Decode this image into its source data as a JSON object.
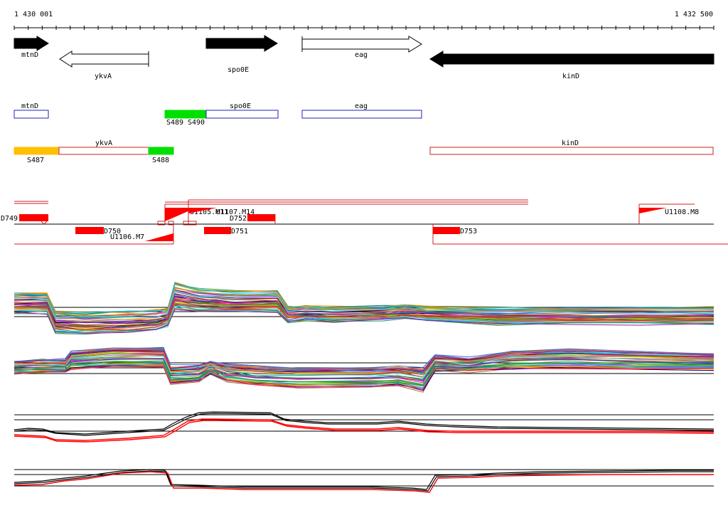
{
  "ruler": {
    "start_label": "1 430 001",
    "end_label": "1 432 500",
    "start": 1430001,
    "end": 1432500
  },
  "genes": [
    {
      "name": "mtnD",
      "start": 1430001,
      "end": 1430120,
      "strand": "+",
      "fill": "black"
    },
    {
      "name": "ykvA",
      "start": 1430160,
      "end": 1430480,
      "strand": "-",
      "fill": "white"
    },
    {
      "name": "spo0E",
      "start": 1430680,
      "end": 1430940,
      "strand": "+",
      "fill": "black"
    },
    {
      "name": "eag",
      "start": 1431020,
      "end": 1431450,
      "strand": "+",
      "fill": "white"
    },
    {
      "name": "kinD",
      "start": 1431480,
      "end": 1432500,
      "strand": "-",
      "fill": "black"
    }
  ],
  "annotation_row_plus": {
    "boxes": [
      {
        "name": "mtnD",
        "start": 1430001,
        "end": 1430120,
        "color": "#2020c0"
      },
      {
        "name": "spo0E",
        "start": 1430680,
        "end": 1430940,
        "color": "#2020c0"
      },
      {
        "name": "eag",
        "start": 1431020,
        "end": 1431450,
        "color": "#2020c0"
      }
    ],
    "segments": [
      {
        "label": "S489",
        "start": 1430535,
        "end": 1430680,
        "color": "#00e000"
      },
      {
        "label": "S490",
        "start": 1430680,
        "end": 1430680,
        "color": "#00e000"
      }
    ]
  },
  "annotation_row_minus": {
    "boxes": [
      {
        "name": "ykvA",
        "start": 1430160,
        "end": 1430480,
        "color": "#d02020"
      },
      {
        "name": "kinD",
        "start": 1431480,
        "end": 1432500,
        "color": "#d02020"
      }
    ],
    "segments": [
      {
        "label": "S487",
        "start": 1430001,
        "end": 1430160,
        "color": "#ffc000"
      },
      {
        "label": "S488",
        "start": 1430480,
        "end": 1430570,
        "color": "#00e000"
      }
    ]
  },
  "features": [
    {
      "label": "D749",
      "kind": "block"
    },
    {
      "label": "D750",
      "kind": "block"
    },
    {
      "label": "U1106.M7",
      "kind": "flag"
    },
    {
      "label": "U1105.M11",
      "kind": "flag"
    },
    {
      "label": "U1107.M14",
      "kind": "flag"
    },
    {
      "label": "D751",
      "kind": "block"
    },
    {
      "label": "D752",
      "kind": "block"
    },
    {
      "label": "D753",
      "kind": "block"
    },
    {
      "label": "U1108.M8",
      "kind": "flag"
    }
  ],
  "colors": {
    "gene_fill": "#000000",
    "annotation_plus": "#2020c0",
    "annotation_minus": "#d02020",
    "segment_yellow": "#ffc000",
    "segment_green": "#00e000",
    "feature_red": "#ff0000",
    "profile_black": "#000000",
    "profile_red": "#ff0000"
  }
}
